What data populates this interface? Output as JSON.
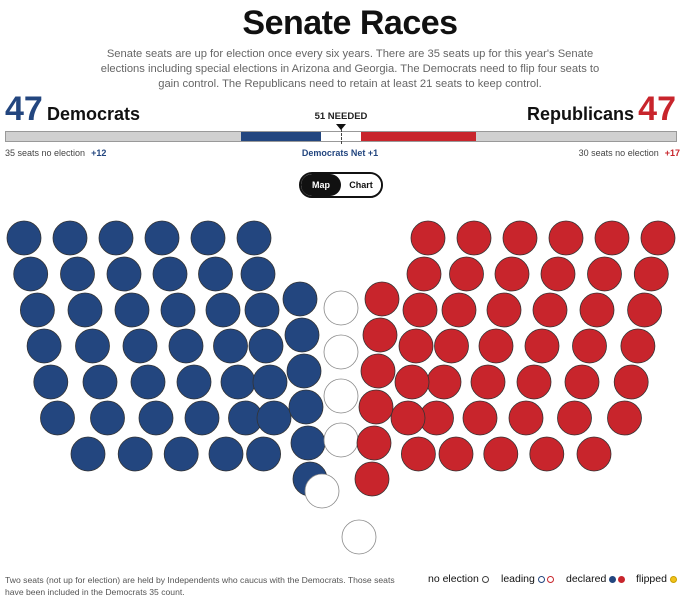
{
  "header": {
    "title": "Senate Races",
    "intro": "Senate seats are up for election once every six years. There are 35 seats up for this year's Senate elections including special elections in Arizona and Georgia. The Democrats need to flip four seats to gain control. The Republicans need to retain at least 21 seats to keep control."
  },
  "tally": {
    "dem_count": "47",
    "dem_label": "Democrats",
    "rep_count": "47",
    "rep_label": "Republicans",
    "needed": "51 NEEDED"
  },
  "subline": {
    "left_text": "35 seats no election",
    "left_delta": "+12",
    "center": "Democrats Net +1",
    "right_text": "30 seats no election",
    "right_delta": "+17"
  },
  "view_toggle": {
    "map_label": "Map",
    "chart_label": "Chart",
    "selected": "Map"
  },
  "seats": {
    "total": 100,
    "democrat": 47,
    "republican": 47,
    "undecided": 6
  },
  "footnote": "Two seats (not up for election) are held by Independents who caucus with the Democrats. Those seats have been included in the Democrats 35 count.",
  "legend": {
    "no_election": "no election",
    "leading": "leading",
    "declared": "declared",
    "flipped": "flipped"
  },
  "colors": {
    "democrat": "#23467f",
    "republican": "#c8252c",
    "undecided": "#ffffff",
    "flipped": "#f2c21b"
  }
}
